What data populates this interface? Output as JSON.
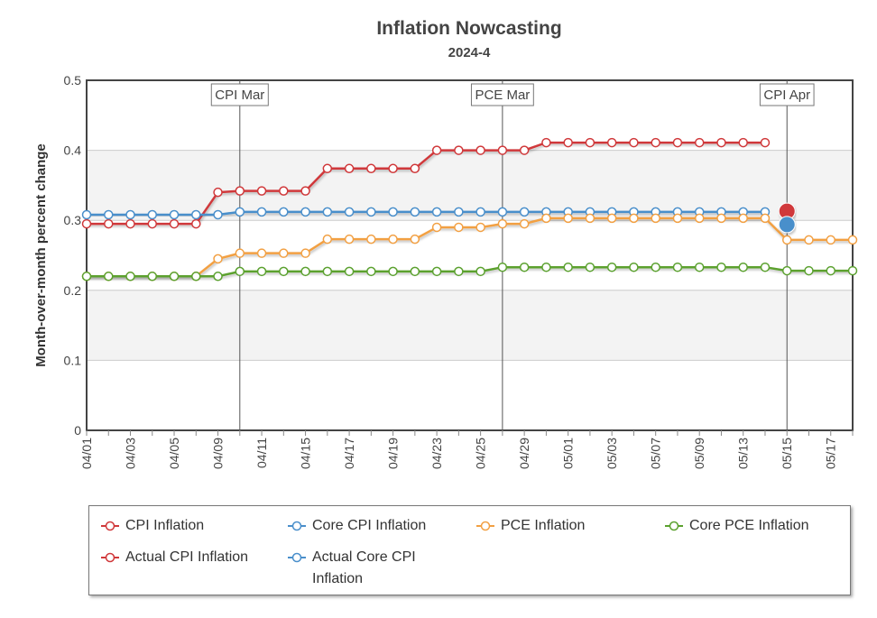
{
  "chart_data": {
    "type": "line",
    "title": "Inflation Nowcasting",
    "subtitle": "2024-4",
    "y_label": "Month-over-month percent change",
    "categories": [
      "04/01",
      null,
      "04/03",
      null,
      "04/05",
      null,
      "04/09",
      null,
      "04/11",
      null,
      "04/15",
      null,
      "04/17",
      null,
      "04/19",
      null,
      "04/23",
      null,
      "04/25",
      null,
      "04/29",
      null,
      "05/01",
      null,
      "05/03",
      null,
      "05/07",
      null,
      "05/09",
      null,
      "05/13",
      null,
      "05/15",
      null,
      "05/17",
      null
    ],
    "ylim": [
      0,
      0.5
    ],
    "yticks": [
      0,
      0.1,
      0.2,
      0.3,
      0.4,
      0.5
    ],
    "grid": true,
    "annotations": [
      {
        "label": "CPI Mar",
        "x": 7
      },
      {
        "label": "PCE Mar",
        "x": 19
      },
      {
        "label": "CPI Apr",
        "x": 32
      }
    ],
    "series": [
      {
        "name": "CPI Inflation",
        "color": "#d0383a",
        "values": [
          0.295,
          0.295,
          0.295,
          0.295,
          0.295,
          0.295,
          0.34,
          0.342,
          0.342,
          0.342,
          0.342,
          0.374,
          0.374,
          0.374,
          0.374,
          0.374,
          0.4,
          0.4,
          0.4,
          0.4,
          0.4,
          0.411,
          0.411,
          0.411,
          0.411,
          0.411,
          0.411,
          0.411,
          0.411,
          0.411,
          0.411,
          0.411,
          null,
          null,
          null,
          null
        ]
      },
      {
        "name": "Core CPI Inflation",
        "color": "#4a8fcb",
        "values": [
          0.308,
          0.308,
          0.308,
          0.308,
          0.308,
          0.308,
          0.308,
          0.312,
          0.312,
          0.312,
          0.312,
          0.312,
          0.312,
          0.312,
          0.312,
          0.312,
          0.312,
          0.312,
          0.312,
          0.312,
          0.312,
          0.312,
          0.312,
          0.312,
          0.312,
          0.312,
          0.312,
          0.312,
          0.312,
          0.312,
          0.312,
          0.312,
          null,
          null,
          null,
          null
        ]
      },
      {
        "name": "PCE Inflation",
        "color": "#f2a043",
        "values": [
          0.22,
          0.22,
          0.22,
          0.22,
          0.22,
          0.22,
          0.245,
          0.253,
          0.253,
          0.253,
          0.253,
          0.273,
          0.273,
          0.273,
          0.273,
          0.273,
          0.29,
          0.29,
          0.29,
          0.295,
          0.295,
          0.303,
          0.303,
          0.303,
          0.303,
          0.303,
          0.303,
          0.303,
          0.303,
          0.303,
          0.303,
          0.303,
          0.272,
          0.272,
          0.272,
          0.272
        ]
      },
      {
        "name": "Core PCE Inflation",
        "color": "#5ba12f",
        "values": [
          0.22,
          0.22,
          0.22,
          0.22,
          0.22,
          0.22,
          0.22,
          0.227,
          0.227,
          0.227,
          0.227,
          0.227,
          0.227,
          0.227,
          0.227,
          0.227,
          0.227,
          0.227,
          0.227,
          0.233,
          0.233,
          0.233,
          0.233,
          0.233,
          0.233,
          0.233,
          0.233,
          0.233,
          0.233,
          0.233,
          0.233,
          0.233,
          0.228,
          0.228,
          0.228,
          0.228
        ]
      },
      {
        "name": "Actual CPI Inflation",
        "color": "#d0383a",
        "values": [
          null,
          null,
          null,
          null,
          null,
          null,
          null,
          null,
          null,
          null,
          null,
          null,
          null,
          null,
          null,
          null,
          null,
          null,
          null,
          null,
          null,
          null,
          null,
          null,
          null,
          null,
          null,
          null,
          null,
          null,
          null,
          null,
          0.313,
          null,
          null,
          null
        ]
      },
      {
        "name": "Actual Core CPI Inflation",
        "color": "#4a8fcb",
        "values": [
          null,
          null,
          null,
          null,
          null,
          null,
          null,
          null,
          null,
          null,
          null,
          null,
          null,
          null,
          null,
          null,
          null,
          null,
          null,
          null,
          null,
          null,
          null,
          null,
          null,
          null,
          null,
          null,
          null,
          null,
          null,
          null,
          0.294,
          null,
          null,
          null
        ]
      }
    ]
  }
}
